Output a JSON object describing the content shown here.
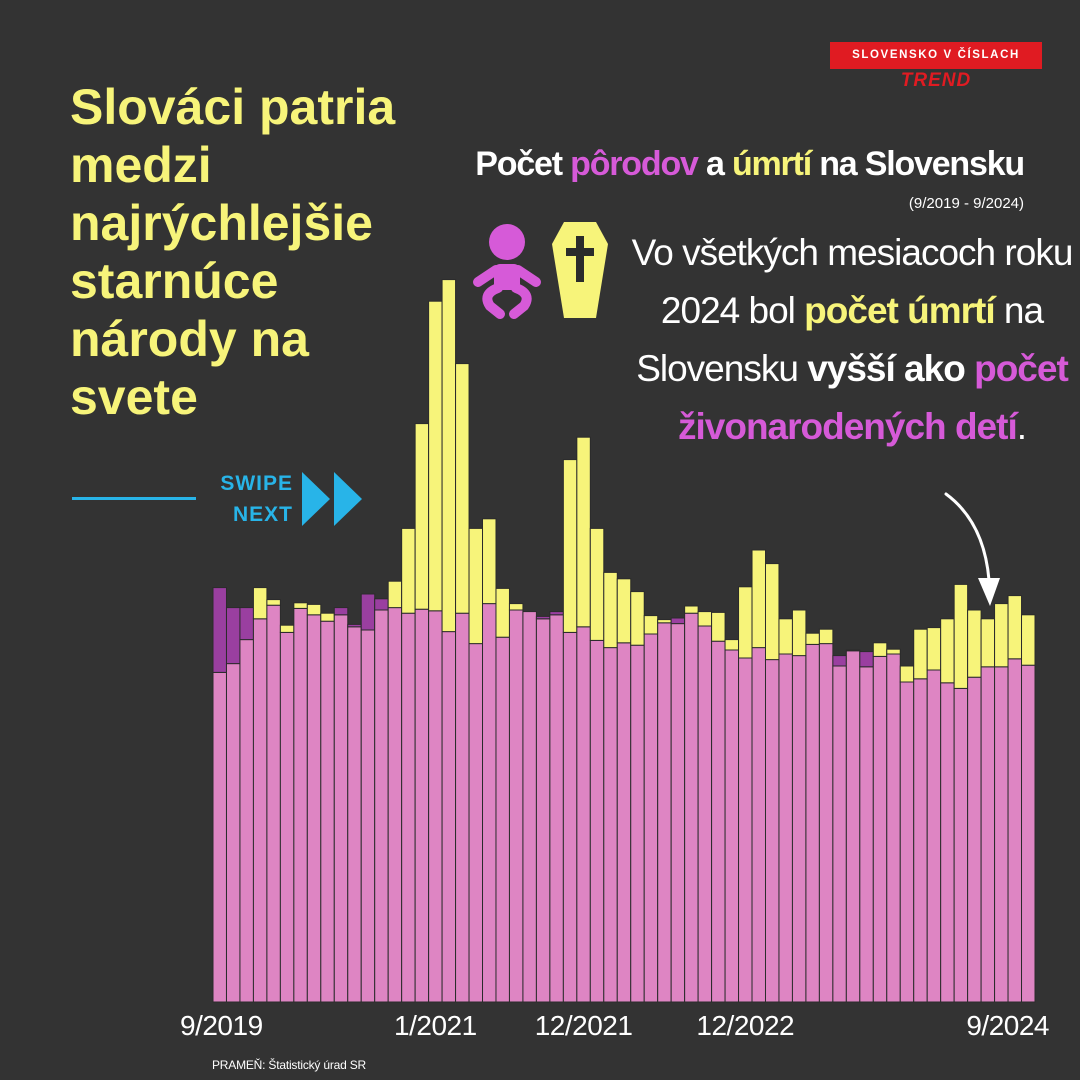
{
  "brand": {
    "badge": "SLOVENSKO V ČÍSLACH",
    "name": "TREND"
  },
  "headline": "Slováci patria medzi najrýchlejšie starnúce národy na svete",
  "swipe": {
    "line1": "SWIPE",
    "line2": "NEXT"
  },
  "title": {
    "part1": "Počet ",
    "part2": "pôrodov",
    "part3": " a ",
    "part4": "úmrtí",
    "part5": " na Slovensku"
  },
  "period": "(9/2019 - 9/2024)",
  "note": {
    "t1": "Vo všetkých mesiacoch roku 2024 bol ",
    "t2": "počet úmrtí",
    "t3": " na Slovensku ",
    "t4": "vyšší ako",
    "t5": " ",
    "t6": "počet živonarodených detí",
    "t7": "."
  },
  "icons": {
    "births": "baby-icon",
    "deaths": "coffin-icon",
    "swipe": "double-chevron-right-icon",
    "note": "curved-arrow-icon"
  },
  "colors": {
    "background": "#333333",
    "births": "#de85c3",
    "births_excess": "#9a3fa0",
    "deaths": "#f7f47a",
    "accent": "#d65ad8",
    "swipe": "#28b4e8",
    "brand": "#e01b22"
  },
  "source": "PRAMEŇ: Štatistický úrad SR",
  "chart_data": {
    "type": "bar",
    "overlay": true,
    "x_ticks": [
      "9/2019",
      "1/2021",
      "12/2021",
      "12/2022",
      "9/2024"
    ],
    "ylim": [
      0,
      10000
    ],
    "grid": false,
    "categories": [
      "9/2019",
      "10/2019",
      "11/2019",
      "12/2019",
      "1/2020",
      "2/2020",
      "3/2020",
      "4/2020",
      "5/2020",
      "6/2020",
      "7/2020",
      "8/2020",
      "9/2020",
      "10/2020",
      "11/2020",
      "12/2020",
      "1/2021",
      "2/2021",
      "3/2021",
      "4/2021",
      "5/2021",
      "6/2021",
      "7/2021",
      "8/2021",
      "9/2021",
      "10/2021",
      "11/2021",
      "12/2021",
      "1/2022",
      "2/2022",
      "3/2022",
      "4/2022",
      "5/2022",
      "6/2022",
      "7/2022",
      "8/2022",
      "9/2022",
      "10/2022",
      "11/2022",
      "12/2022",
      "1/2023",
      "2/2023",
      "3/2023",
      "4/2023",
      "5/2023",
      "6/2023",
      "7/2023",
      "8/2023",
      "9/2023",
      "10/2023",
      "11/2023",
      "12/2023",
      "1/2024",
      "2/2024",
      "3/2024",
      "4/2024",
      "5/2024",
      "6/2024",
      "7/2024",
      "8/2024",
      "9/2024"
    ],
    "series": [
      {
        "name": "pôrodov",
        "values": [
          5180,
          4930,
          4930,
          4790,
          4960,
          4620,
          4920,
          4840,
          4760,
          4930,
          4720,
          5100,
          5040,
          4930,
          4860,
          4910,
          4890,
          4630,
          4860,
          4480,
          4980,
          4560,
          4900,
          4880,
          4820,
          4880,
          4620,
          4690,
          4520,
          4430,
          4490,
          4460,
          4600,
          4740,
          4800,
          4860,
          4700,
          4510,
          4400,
          4300,
          4430,
          4280,
          4350,
          4330,
          4470,
          4480,
          4330,
          4390,
          4380,
          4320,
          4350,
          4000,
          4040,
          4150,
          3990,
          3920,
          4060,
          4190,
          4190,
          4290,
          4210
        ]
      },
      {
        "name": "úmrtí",
        "values": [
          4120,
          4230,
          4530,
          5180,
          5030,
          4710,
          4990,
          4970,
          4860,
          4840,
          4690,
          4650,
          4900,
          5260,
          5920,
          7230,
          8760,
          9030,
          7980,
          5920,
          6040,
          5170,
          4980,
          4880,
          4790,
          4840,
          6780,
          7060,
          5920,
          5370,
          5290,
          5130,
          4830,
          4780,
          4730,
          4950,
          4880,
          4870,
          4530,
          5190,
          5650,
          5480,
          4790,
          4900,
          4610,
          4660,
          4200,
          4400,
          4190,
          4490,
          4410,
          4200,
          4660,
          4680,
          4790,
          5220,
          4900,
          4790,
          4980,
          5080,
          4840
        ]
      }
    ]
  }
}
